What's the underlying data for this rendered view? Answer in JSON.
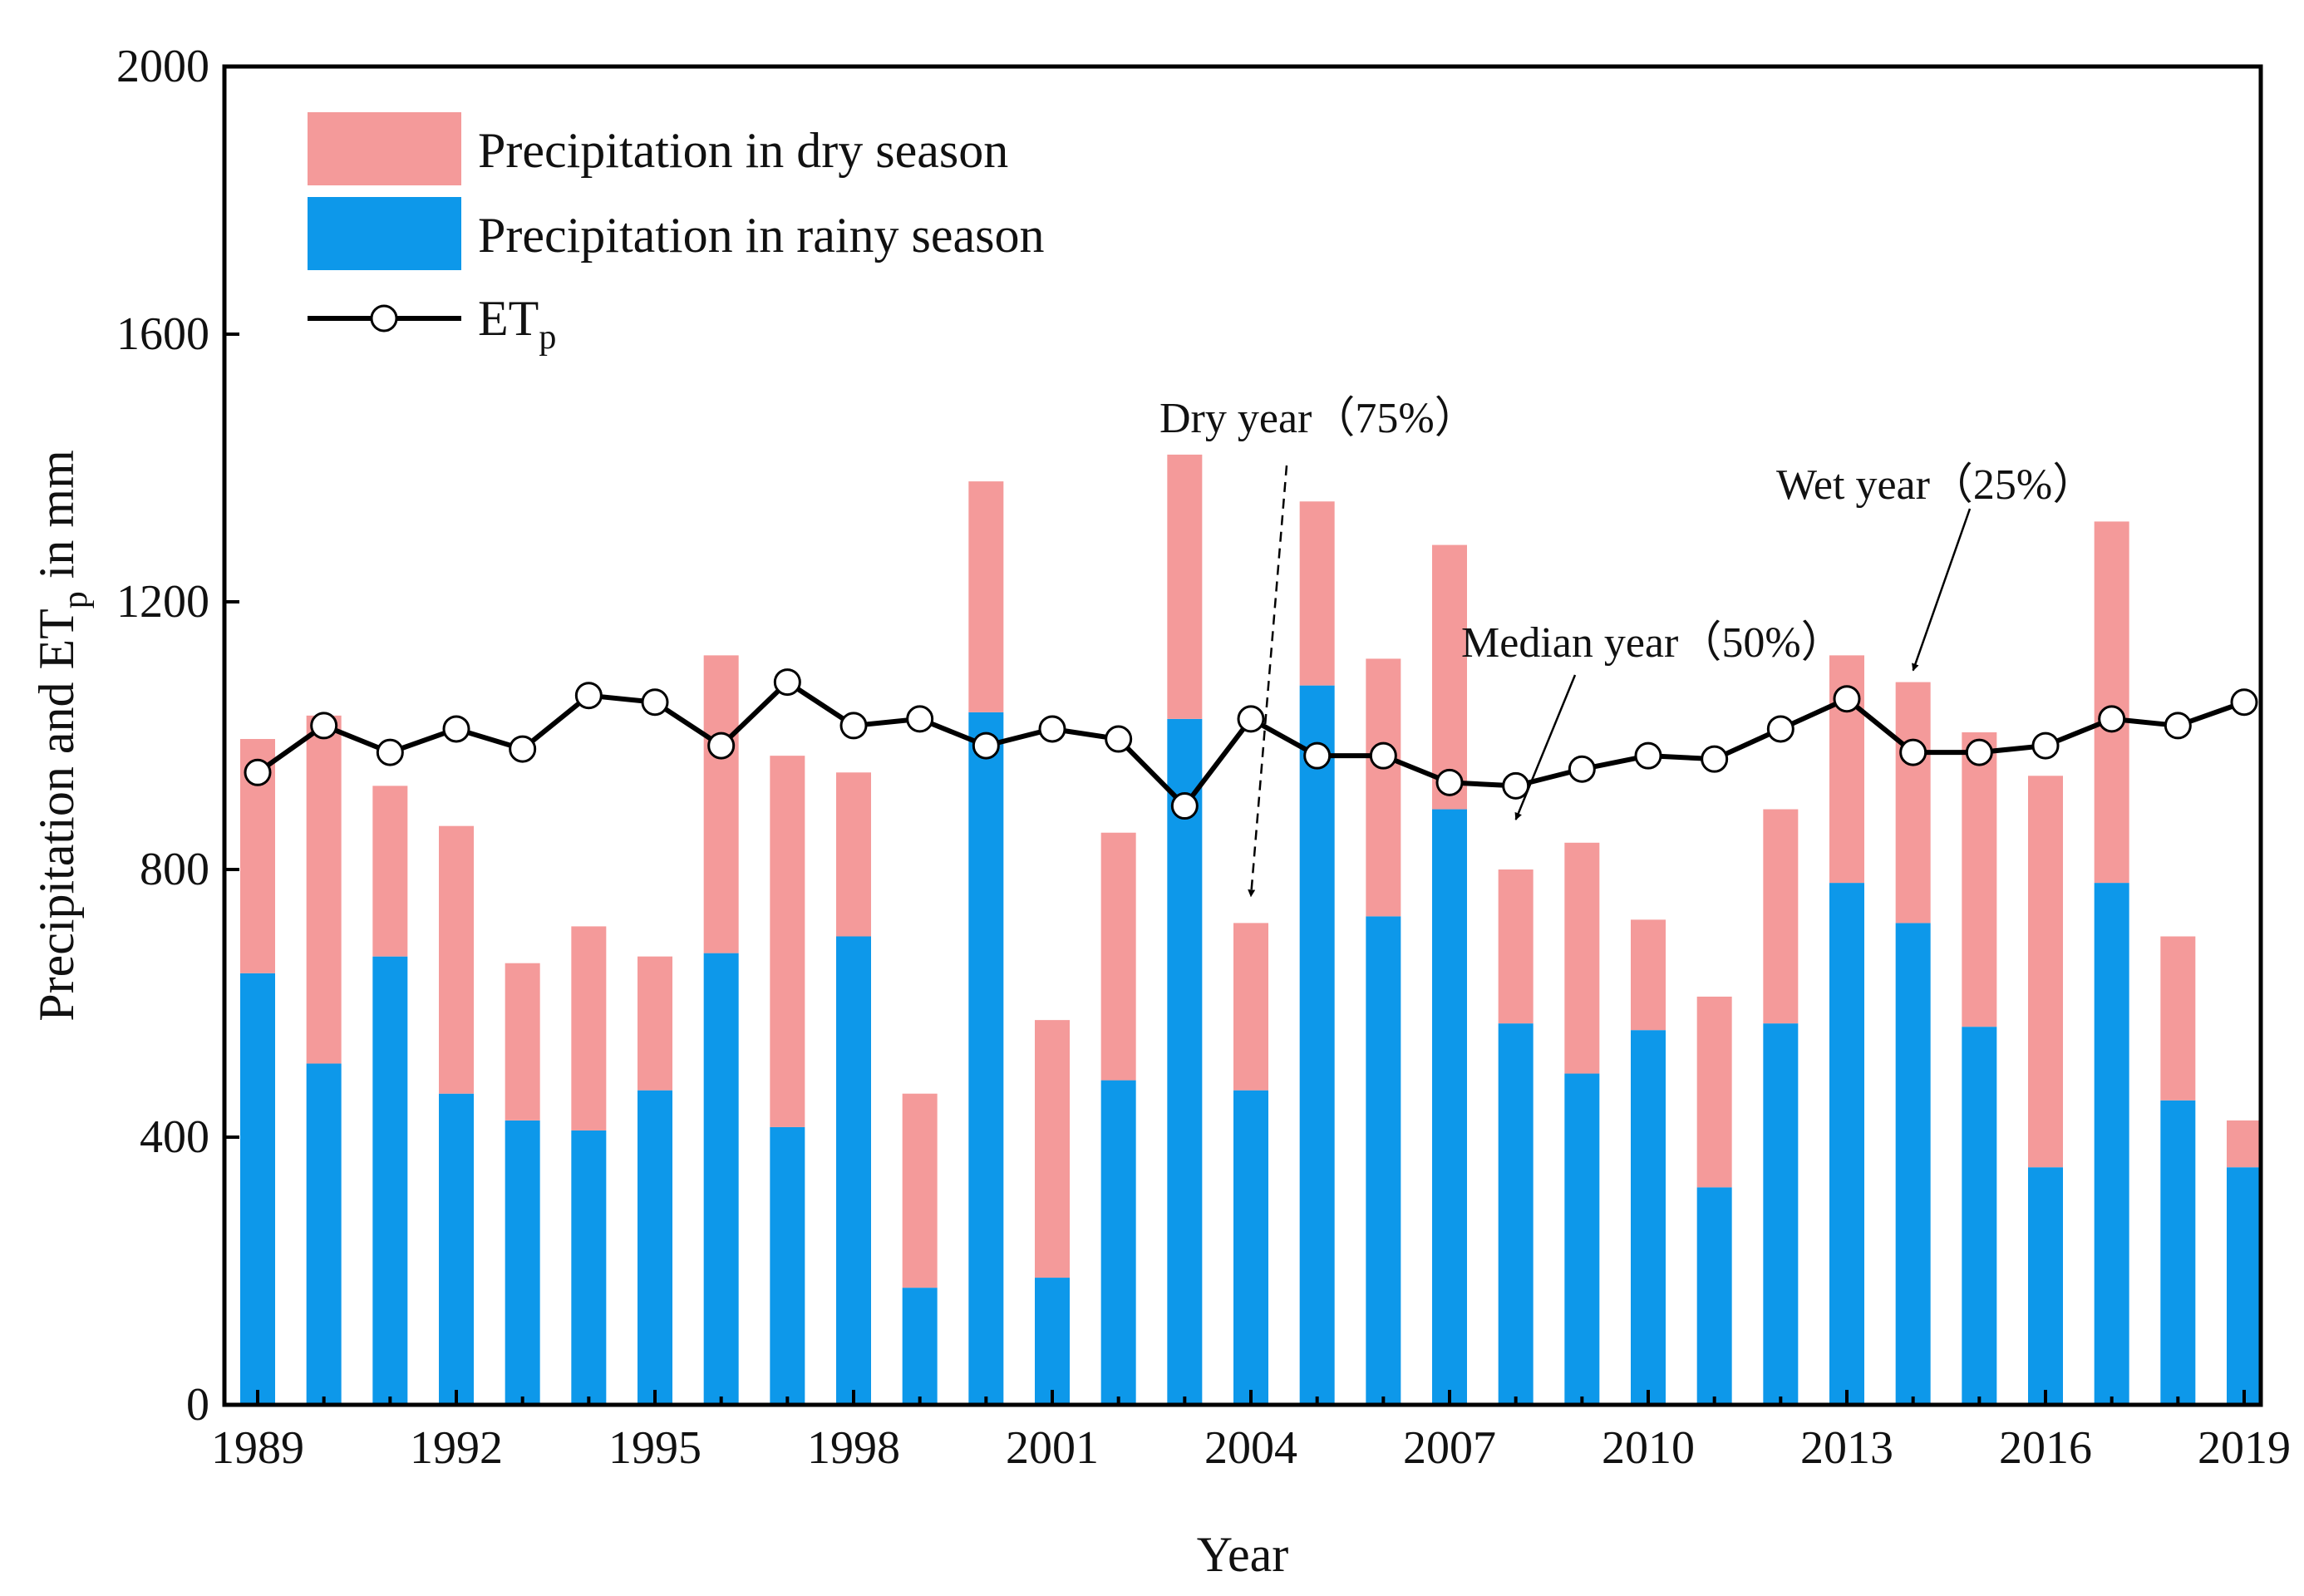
{
  "chart_data": {
    "type": "bar",
    "stacked": true,
    "title": "",
    "xlabel": "Year",
    "ylabel": {
      "main": "Precipitation and ET",
      "sub": "p",
      "tail": " in mm"
    },
    "ylim": [
      0,
      2000
    ],
    "yticks": [
      0,
      400,
      800,
      1200,
      1600,
      2000
    ],
    "xticks": [
      "1989",
      "1992",
      "1995",
      "1998",
      "2001",
      "2004",
      "2007",
      "2010",
      "2013",
      "2016",
      "2019"
    ],
    "categories": [
      "1989",
      "1990",
      "1991",
      "1992",
      "1993",
      "1994",
      "1995",
      "1996",
      "1997",
      "1998",
      "1999",
      "2000",
      "2001",
      "2002",
      "2003",
      "2004",
      "2005",
      "2006",
      "2007",
      "2008",
      "2009",
      "2010",
      "2011",
      "2012",
      "2013",
      "2014",
      "2015",
      "2016",
      "2017",
      "2018",
      "2019"
    ],
    "series": [
      {
        "name": "Precipitation in rainy season",
        "kind": "bar",
        "color": "#0d98ea",
        "values": [
          645,
          510,
          670,
          465,
          425,
          410,
          470,
          675,
          415,
          700,
          175,
          1035,
          190,
          485,
          1025,
          470,
          1075,
          730,
          890,
          570,
          495,
          560,
          325,
          570,
          780,
          720,
          565,
          355,
          780,
          455,
          355
        ]
      },
      {
        "name": "Precipitation in dry season",
        "kind": "bar",
        "color": "#f49a9a",
        "values": [
          350,
          520,
          255,
          400,
          235,
          305,
          200,
          445,
          555,
          245,
          290,
          345,
          385,
          370,
          395,
          250,
          275,
          385,
          395,
          230,
          345,
          165,
          285,
          320,
          340,
          360,
          440,
          585,
          540,
          245,
          70
        ]
      },
      {
        "name": "ET",
        "name_sub": "p",
        "kind": "line",
        "color": "#000000",
        "values": [
          945,
          1015,
          975,
          1010,
          980,
          1060,
          1050,
          985,
          1080,
          1015,
          1025,
          985,
          1010,
          995,
          895,
          1025,
          970,
          970,
          930,
          925,
          950,
          970,
          965,
          1010,
          1055,
          975,
          975,
          985,
          1025,
          1015,
          1050
        ]
      }
    ],
    "legend": {
      "position": "top-left"
    },
    "annotations": [
      {
        "text": "Dry year（75%）",
        "target": "2004"
      },
      {
        "text": "Median year（50%）",
        "target": "2008"
      },
      {
        "text": "Wet year（25%）",
        "target": "2014"
      }
    ]
  }
}
